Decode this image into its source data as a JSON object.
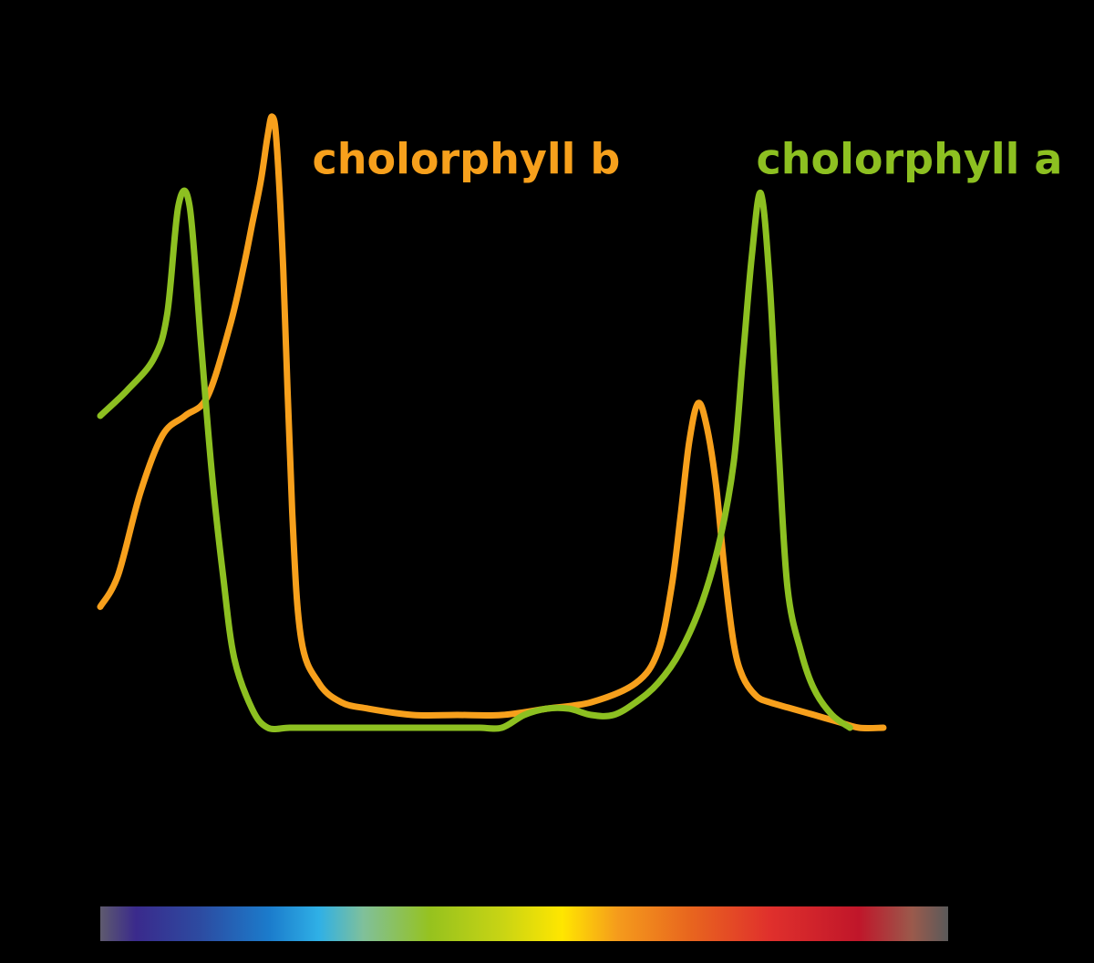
{
  "chart_data": {
    "type": "line",
    "title": "",
    "xlabel": "",
    "ylabel": "",
    "grid": false,
    "xlim": [
      380,
      760
    ],
    "ylim": [
      0,
      1.0
    ],
    "spectrum_bar": {
      "stops": [
        {
          "x": 380,
          "color": "#5e5a6e"
        },
        {
          "x": 396,
          "color": "#3a2a8c"
        },
        {
          "x": 424,
          "color": "#2d4aa0"
        },
        {
          "x": 456,
          "color": "#1b7ccc"
        },
        {
          "x": 478,
          "color": "#2fb0e6"
        },
        {
          "x": 498,
          "color": "#80c09a"
        },
        {
          "x": 528,
          "color": "#96c21e"
        },
        {
          "x": 560,
          "color": "#c8d414"
        },
        {
          "x": 587,
          "color": "#ffe600"
        },
        {
          "x": 612,
          "color": "#f59b1c"
        },
        {
          "x": 644,
          "color": "#e8661e"
        },
        {
          "x": 680,
          "color": "#e0302c"
        },
        {
          "x": 720,
          "color": "#c0162a"
        },
        {
          "x": 744,
          "color": "#9a5a4c"
        },
        {
          "x": 760,
          "color": "#5a5a5a"
        }
      ]
    },
    "series": [
      {
        "name": "cholorphyll a",
        "color": "#8dc021",
        "x": [
          380,
          392,
          404,
          410,
          415,
          420,
          425,
          430,
          435,
          440,
          448,
          455,
          465,
          480,
          500,
          520,
          530,
          540,
          550,
          560,
          570,
          580,
          590,
          600,
          610,
          620,
          630,
          640,
          650,
          658,
          664,
          668,
          672,
          676,
          680,
          684,
          688,
          694,
          700,
          708,
          716
        ],
        "y": [
          0.49,
          0.53,
          0.58,
          0.65,
          0.82,
          0.82,
          0.61,
          0.4,
          0.24,
          0.11,
          0.03,
          0.0,
          0.0,
          0.0,
          0.0,
          0.0,
          0.0,
          0.0,
          0.0,
          0.0,
          0.02,
          0.03,
          0.03,
          0.02,
          0.02,
          0.04,
          0.07,
          0.12,
          0.2,
          0.3,
          0.42,
          0.58,
          0.74,
          0.84,
          0.7,
          0.44,
          0.22,
          0.12,
          0.06,
          0.02,
          0.0
        ]
      },
      {
        "name": "cholorphyll b",
        "color": "#f7a01c",
        "x": [
          380,
          388,
          398,
          408,
          418,
          428,
          438,
          444,
          448,
          452,
          455,
          457,
          459,
          462,
          466,
          470,
          478,
          488,
          500,
          520,
          540,
          560,
          580,
          600,
          620,
          630,
          636,
          640,
          644,
          648,
          652,
          656,
          660,
          664,
          668,
          674,
          680,
          690,
          700,
          710,
          720,
          731
        ],
        "y": [
          0.19,
          0.24,
          0.37,
          0.46,
          0.49,
          0.52,
          0.63,
          0.72,
          0.79,
          0.86,
          0.93,
          0.96,
          0.92,
          0.72,
          0.34,
          0.14,
          0.07,
          0.04,
          0.03,
          0.02,
          0.02,
          0.02,
          0.03,
          0.04,
          0.07,
          0.12,
          0.22,
          0.33,
          0.45,
          0.51,
          0.47,
          0.38,
          0.24,
          0.13,
          0.08,
          0.05,
          0.04,
          0.03,
          0.02,
          0.01,
          0.0,
          0.0
        ]
      }
    ],
    "labels": [
      {
        "text": "cholorphyll b",
        "series": 1,
        "x": 475,
        "y": 0.87
      },
      {
        "text": "cholorphyll a",
        "series": 0,
        "x": 674,
        "y": 0.87
      }
    ]
  }
}
